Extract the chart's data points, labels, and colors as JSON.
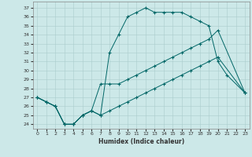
{
  "title": "",
  "xlabel": "Humidex (Indice chaleur)",
  "bg_color": "#cce8e8",
  "line_color": "#006666",
  "grid_color": "#aacccc",
  "xlim": [
    -0.5,
    23.5
  ],
  "ylim": [
    23.5,
    37.7
  ],
  "xticks": [
    0,
    1,
    2,
    3,
    4,
    5,
    6,
    7,
    8,
    9,
    10,
    11,
    12,
    13,
    14,
    15,
    16,
    17,
    18,
    19,
    20,
    21,
    22,
    23
  ],
  "yticks": [
    24,
    25,
    26,
    27,
    28,
    29,
    30,
    31,
    32,
    33,
    34,
    35,
    36,
    37
  ],
  "line1_x": [
    0,
    1,
    2,
    3,
    4,
    5,
    6,
    7,
    8,
    9,
    10,
    11,
    12,
    13,
    14,
    15,
    16,
    17,
    18,
    19,
    20,
    21,
    23
  ],
  "line1_y": [
    27,
    26.5,
    26,
    24,
    24,
    25,
    25.5,
    25,
    32,
    34,
    36,
    36.5,
    37,
    36.5,
    36.5,
    36.5,
    36.5,
    36,
    35.5,
    35,
    31,
    29.5,
    27.5
  ],
  "line2_x": [
    0,
    1,
    2,
    3,
    4,
    5,
    6,
    7,
    8,
    9,
    10,
    11,
    12,
    13,
    14,
    15,
    16,
    17,
    18,
    19,
    20,
    23
  ],
  "line2_y": [
    27,
    26.5,
    26,
    24,
    24,
    25,
    25.5,
    28.5,
    28.5,
    28.5,
    29,
    29.5,
    30,
    30.5,
    31,
    31.5,
    32,
    32.5,
    33,
    33.5,
    34.5,
    27.5
  ],
  "line3_x": [
    0,
    1,
    2,
    3,
    4,
    5,
    6,
    7,
    8,
    9,
    10,
    11,
    12,
    13,
    14,
    15,
    16,
    17,
    18,
    19,
    20,
    23
  ],
  "line3_y": [
    27,
    26.5,
    26,
    24,
    24,
    25,
    25.5,
    25,
    25.5,
    26,
    26.5,
    27,
    27.5,
    28,
    28.5,
    29,
    29.5,
    30,
    30.5,
    31,
    31.5,
    27.5
  ]
}
